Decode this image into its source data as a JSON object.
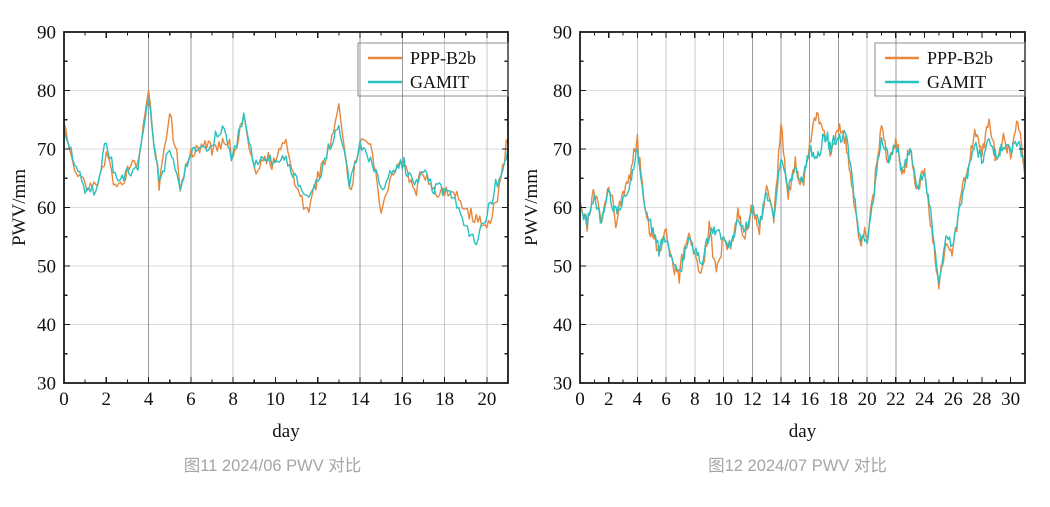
{
  "figure": {
    "captions": {
      "left": "图11 2024/06 PWV 对比",
      "right": "图12 2024/07 PWV 对比"
    },
    "caption_color": "#a5a5a5",
    "frame_color": "#1a1a1a",
    "grid_h_color": "#dcdcdc",
    "grid_v_dark_color": "#9a9a9a",
    "grid_v_light_color": "#c8c8c8",
    "tick_label_color": "#111111"
  },
  "chart_data": [
    {
      "type": "line",
      "title": "图11 2024/06 PWV 对比",
      "xlabel": "day",
      "ylabel": "PWV/mm",
      "xlim": [
        0,
        21
      ],
      "ylim": [
        30,
        90
      ],
      "xticks_major": [
        0,
        2,
        4,
        6,
        8,
        10,
        12,
        14,
        16,
        18,
        20
      ],
      "xticks_minor": [
        1,
        3,
        5,
        7,
        9,
        11,
        13,
        15,
        17,
        19
      ],
      "yticks_major": [
        30,
        40,
        50,
        60,
        70,
        80,
        90
      ],
      "yticks_minor": [
        35,
        45,
        55,
        65,
        75,
        85
      ],
      "grid_horizontal": [
        40,
        50,
        60,
        70,
        80
      ],
      "grid_vertical_dark_days": [
        4,
        6,
        14,
        16
      ],
      "grid_vertical_light_days": [
        8,
        18,
        20
      ],
      "legend": {
        "position": "top-right",
        "entries": [
          "PPP-B2b",
          "GAMIT"
        ]
      },
      "x_step": 0.5,
      "series": [
        {
          "name": "PPP-B2b",
          "color": "#e8873c",
          "values": [
            74.5,
            67,
            63.5,
            63.5,
            70,
            62.5,
            66.5,
            68,
            79.5,
            63.5,
            77,
            63,
            69,
            70.5,
            70.5,
            71,
            68.5,
            76.5,
            66,
            68.5,
            68,
            71,
            63.5,
            59,
            65,
            69.5,
            76.5,
            63.5,
            71.5,
            70.5,
            59.5,
            65,
            68,
            63.5,
            66.5,
            62,
            62.5,
            63,
            59.5,
            58,
            56.5,
            62,
            71
          ]
        },
        {
          "name": "GAMIT",
          "color": "#2bc0c0",
          "values": [
            73.5,
            68,
            64,
            62.8,
            71.3,
            64.5,
            66,
            67,
            78.5,
            64.5,
            69.5,
            63.8,
            69.5,
            70,
            71,
            73.5,
            69,
            75.3,
            67,
            69,
            67.5,
            68.5,
            64.5,
            61.5,
            64.5,
            69,
            74.5,
            64.8,
            70.5,
            68,
            63.5,
            66,
            67.5,
            64,
            66,
            63,
            64,
            61,
            56,
            54,
            59,
            63.5,
            70
          ]
        }
      ]
    },
    {
      "type": "line",
      "title": "图12 2024/07 PWV 对比",
      "xlabel": "day",
      "ylabel": "PWV/mm",
      "xlim": [
        0,
        31
      ],
      "ylim": [
        30,
        90
      ],
      "xticks_major": [
        0,
        2,
        4,
        6,
        8,
        10,
        12,
        14,
        16,
        18,
        20,
        22,
        24,
        26,
        28,
        30
      ],
      "xticks_minor": [
        1,
        3,
        5,
        7,
        9,
        11,
        13,
        15,
        17,
        19,
        21,
        23,
        25,
        27,
        29
      ],
      "yticks_major": [
        30,
        40,
        50,
        60,
        70,
        80,
        90
      ],
      "yticks_minor": [
        35,
        45,
        55,
        65,
        75,
        85
      ],
      "grid_horizontal": [
        40,
        50,
        60,
        70,
        80
      ],
      "grid_vertical_dark_days": [
        12,
        14,
        16,
        18,
        22
      ],
      "grid_vertical_light_days": [
        4,
        6,
        8,
        10,
        20
      ],
      "legend": {
        "position": "top-right",
        "entries": [
          "PPP-B2b",
          "GAMIT"
        ]
      },
      "x_step": 0.5,
      "series": [
        {
          "name": "PPP-B2b",
          "color": "#e8873c",
          "values": [
            61,
            56.5,
            63.5,
            56.5,
            64.5,
            57.5,
            62.5,
            65.5,
            72.5,
            59,
            55.5,
            52.5,
            56,
            49.5,
            50,
            55.5,
            51.5,
            49,
            56.5,
            48.5,
            55,
            52.5,
            59,
            54.5,
            60.5,
            56,
            63.5,
            57.5,
            74,
            62,
            67.5,
            63.5,
            71,
            76,
            73.5,
            69,
            74,
            71.5,
            63,
            54,
            55,
            64,
            73.5,
            67.5,
            72,
            65.5,
            70.5,
            62.5,
            67,
            56,
            46.5,
            54.5,
            52.5,
            61.5,
            66.5,
            73,
            69,
            75.5,
            67.5,
            72,
            68.5,
            75.5,
            65
          ]
        },
        {
          "name": "GAMIT",
          "color": "#2bc0c0",
          "values": [
            60,
            57.5,
            62,
            57.5,
            63,
            58.5,
            61.5,
            64,
            70.5,
            60,
            56.5,
            53.5,
            55,
            50,
            48.5,
            54.5,
            52.5,
            50.5,
            55.5,
            56,
            54,
            53.5,
            58,
            55.5,
            59.5,
            57,
            62.5,
            58.5,
            69,
            63,
            66.5,
            64.5,
            70,
            68,
            72,
            70,
            71.5,
            73,
            64,
            55,
            54,
            63,
            72,
            68.5,
            71,
            66.5,
            69.5,
            63.5,
            66,
            57,
            47.5,
            55.5,
            53.5,
            60.5,
            65.5,
            71,
            68,
            72,
            68.5,
            71,
            69.5,
            71.5,
            66.5
          ]
        }
      ]
    }
  ]
}
